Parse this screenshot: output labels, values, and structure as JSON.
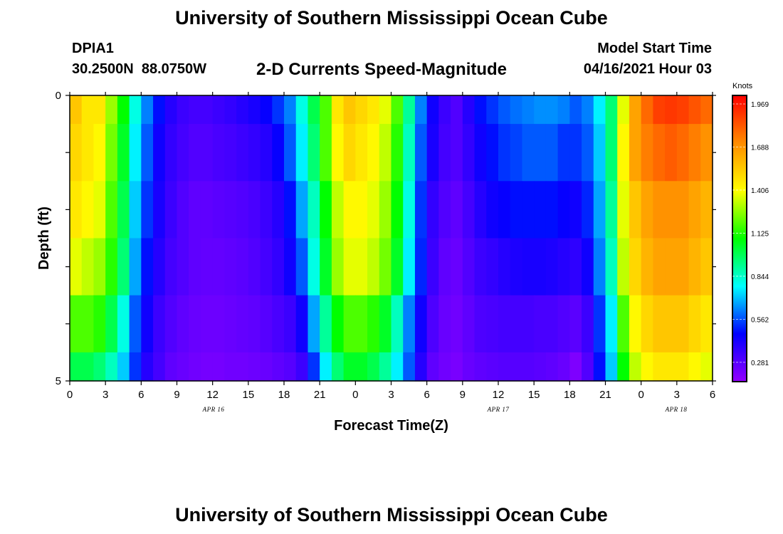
{
  "header": {
    "title": "University of Southern Mississippi Ocean Cube",
    "station": "DPIA1",
    "coordinates": "30.2500N  88.0750W",
    "subtitle": "2-D Currents Speed-Magnitude",
    "model_start_label": "Model Start Time",
    "model_start_value": "04/16/2021 Hour 03"
  },
  "footer": {
    "title": "University of Southern Mississippi Ocean Cube"
  },
  "chart_data": {
    "type": "heatmap",
    "title": "2-D Currents Speed-Magnitude",
    "xlabel": "Forecast Time(Z)",
    "ylabel": "Depth (ft)",
    "x_ticks": [
      "0",
      "3",
      "6",
      "9",
      "12",
      "15",
      "18",
      "21",
      "0",
      "3",
      "6",
      "9",
      "12",
      "15",
      "18",
      "21",
      "0",
      "3",
      "6"
    ],
    "date_labels": [
      "APR 16",
      "APR 17",
      "APR 18"
    ],
    "xlim_hours": [
      0,
      54
    ],
    "y_ticks": [
      "0",
      "5"
    ],
    "ylim": [
      0,
      5
    ],
    "colorbar": {
      "label": "Knots",
      "ticks": [
        "1.969",
        "1.688",
        "1.406",
        "1.125",
        "0.844",
        "0.562",
        "0.281"
      ],
      "min": 0.1,
      "max": 2.1,
      "colors": [
        "#9400ff",
        "#0000ff",
        "#00ffff",
        "#00ff00",
        "#ffff00",
        "#ff8c00",
        "#ff0000"
      ]
    },
    "x_hours": [
      0,
      1,
      2,
      3,
      4,
      5,
      6,
      7,
      8,
      9,
      10,
      11,
      12,
      13,
      14,
      15,
      16,
      17,
      18,
      19,
      20,
      21,
      22,
      23,
      24,
      25,
      26,
      27,
      28,
      29,
      30,
      31,
      32,
      33,
      34,
      35,
      36,
      37,
      38,
      39,
      40,
      41,
      42,
      43,
      44,
      45,
      46,
      47,
      48,
      49,
      50,
      51,
      52,
      53,
      54
    ],
    "depth_bands": [
      0,
      0.5,
      1.5,
      2.5,
      3.5,
      4.5,
      5
    ],
    "values": [
      [
        1.6,
        1.5,
        1.5,
        1.3,
        1.1,
        0.8,
        0.6,
        0.45,
        0.35,
        0.3,
        0.28,
        0.28,
        0.3,
        0.32,
        0.35,
        0.38,
        0.42,
        0.5,
        0.6,
        0.8,
        1.0,
        1.2,
        1.5,
        1.6,
        1.55,
        1.5,
        1.4,
        1.2,
        0.9,
        0.6,
        0.4,
        0.3,
        0.25,
        0.35,
        0.45,
        0.5,
        0.55,
        0.58,
        0.6,
        0.62,
        0.62,
        0.6,
        0.55,
        0.6,
        0.75,
        0.95,
        1.4,
        1.7,
        1.85,
        1.95,
        1.97,
        1.95,
        1.9,
        1.85,
        1.75
      ],
      [
        1.55,
        1.5,
        1.45,
        1.25,
        1.05,
        0.75,
        0.55,
        0.4,
        0.32,
        0.28,
        0.25,
        0.25,
        0.27,
        0.28,
        0.3,
        0.32,
        0.35,
        0.42,
        0.55,
        0.75,
        0.95,
        1.2,
        1.45,
        1.55,
        1.5,
        1.45,
        1.35,
        1.15,
        0.85,
        0.55,
        0.38,
        0.28,
        0.25,
        0.32,
        0.4,
        0.45,
        0.5,
        0.52,
        0.55,
        0.55,
        0.55,
        0.5,
        0.5,
        0.55,
        0.7,
        0.95,
        1.45,
        1.7,
        1.8,
        1.85,
        1.88,
        1.85,
        1.8,
        1.75,
        1.65
      ],
      [
        1.5,
        1.45,
        1.4,
        1.2,
        1.0,
        0.7,
        0.5,
        0.38,
        0.3,
        0.25,
        0.22,
        0.22,
        0.23,
        0.24,
        0.25,
        0.27,
        0.3,
        0.35,
        0.45,
        0.65,
        0.85,
        1.1,
        1.35,
        1.45,
        1.45,
        1.4,
        1.3,
        1.1,
        0.8,
        0.5,
        0.32,
        0.25,
        0.22,
        0.28,
        0.35,
        0.4,
        0.42,
        0.45,
        0.45,
        0.45,
        0.45,
        0.42,
        0.4,
        0.48,
        0.65,
        0.9,
        1.4,
        1.6,
        1.7,
        1.75,
        1.75,
        1.75,
        1.7,
        1.65,
        1.55
      ],
      [
        1.4,
        1.35,
        1.3,
        1.15,
        0.95,
        0.65,
        0.45,
        0.35,
        0.28,
        0.25,
        0.22,
        0.21,
        0.21,
        0.22,
        0.23,
        0.25,
        0.28,
        0.32,
        0.4,
        0.55,
        0.8,
        1.05,
        1.3,
        1.4,
        1.4,
        1.35,
        1.25,
        1.05,
        0.75,
        0.48,
        0.3,
        0.22,
        0.2,
        0.25,
        0.3,
        0.32,
        0.35,
        0.37,
        0.38,
        0.38,
        0.37,
        0.35,
        0.33,
        0.4,
        0.6,
        0.85,
        1.35,
        1.55,
        1.65,
        1.7,
        1.7,
        1.7,
        1.65,
        1.6,
        1.5
      ],
      [
        1.2,
        1.2,
        1.15,
        1.0,
        0.8,
        0.55,
        0.4,
        0.3,
        0.25,
        0.22,
        0.2,
        0.19,
        0.19,
        0.2,
        0.21,
        0.22,
        0.24,
        0.27,
        0.3,
        0.4,
        0.65,
        0.9,
        1.1,
        1.2,
        1.2,
        1.15,
        1.05,
        0.85,
        0.6,
        0.4,
        0.26,
        0.2,
        0.18,
        0.22,
        0.26,
        0.27,
        0.28,
        0.28,
        0.28,
        0.27,
        0.27,
        0.25,
        0.23,
        0.3,
        0.5,
        0.75,
        1.2,
        1.45,
        1.55,
        1.6,
        1.6,
        1.6,
        1.55,
        1.5,
        1.4
      ],
      [
        1.0,
        1.0,
        0.95,
        0.85,
        0.7,
        0.5,
        0.35,
        0.28,
        0.22,
        0.2,
        0.18,
        0.17,
        0.17,
        0.18,
        0.18,
        0.19,
        0.2,
        0.22,
        0.24,
        0.3,
        0.5,
        0.75,
        0.95,
        1.05,
        1.05,
        1.0,
        0.9,
        0.75,
        0.55,
        0.35,
        0.22,
        0.18,
        0.16,
        0.2,
        0.22,
        0.23,
        0.24,
        0.24,
        0.24,
        0.23,
        0.22,
        0.2,
        0.15,
        0.25,
        0.45,
        0.7,
        1.1,
        1.35,
        1.45,
        1.5,
        1.5,
        1.5,
        1.45,
        1.4,
        1.3
      ]
    ]
  }
}
